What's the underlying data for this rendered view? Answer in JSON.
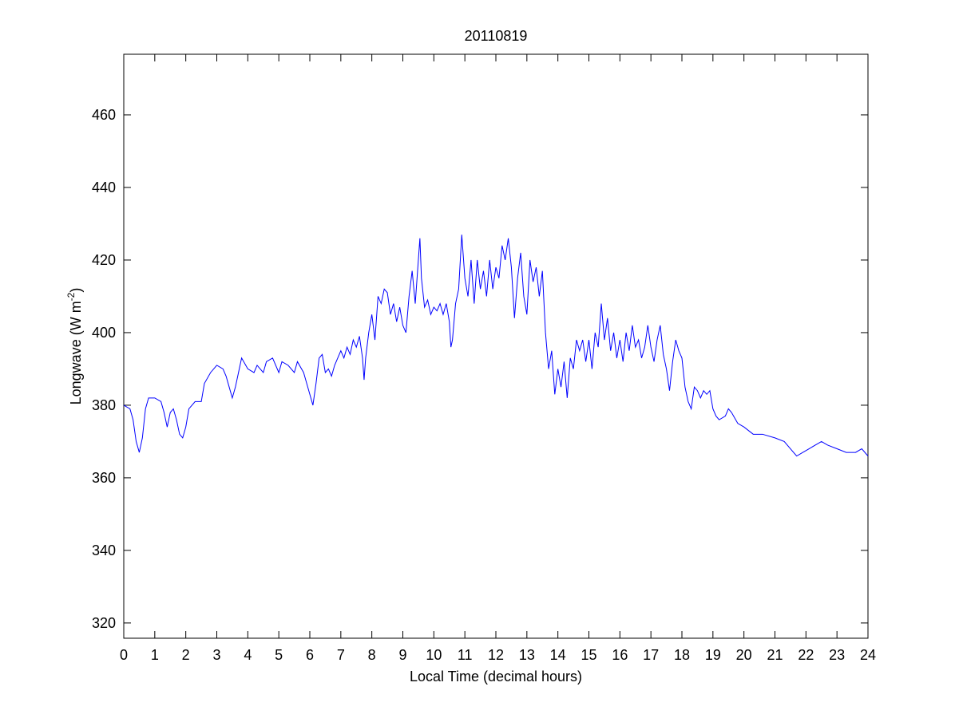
{
  "chart_data": {
    "type": "line",
    "title": "20110819",
    "x_label": "Local Time (decimal hours)",
    "y_label": {
      "text": "Longwave (W m",
      "superscript": "-2",
      "suffix": ")"
    },
    "color": "#0000ff",
    "x": [
      0,
      0.2,
      0.3,
      0.4,
      0.5,
      0.6,
      0.7,
      0.8,
      1.0,
      1.2,
      1.3,
      1.4,
      1.5,
      1.6,
      1.7,
      1.8,
      1.9,
      2.0,
      2.1,
      2.3,
      2.5,
      2.6,
      2.8,
      3.0,
      3.2,
      3.3,
      3.4,
      3.5,
      3.6,
      3.7,
      3.8,
      4.0,
      4.2,
      4.3,
      4.5,
      4.6,
      4.8,
      5.0,
      5.1,
      5.3,
      5.5,
      5.6,
      5.8,
      5.9,
      6.0,
      6.1,
      6.2,
      6.3,
      6.4,
      6.5,
      6.6,
      6.7,
      6.8,
      6.9,
      7.0,
      7.1,
      7.2,
      7.3,
      7.4,
      7.5,
      7.6,
      7.7,
      7.75,
      7.8,
      7.9,
      8.0,
      8.1,
      8.2,
      8.3,
      8.4,
      8.5,
      8.6,
      8.7,
      8.8,
      8.9,
      9.0,
      9.1,
      9.2,
      9.3,
      9.4,
      9.5,
      9.55,
      9.6,
      9.7,
      9.8,
      9.9,
      10.0,
      10.1,
      10.2,
      10.3,
      10.4,
      10.5,
      10.55,
      10.6,
      10.7,
      10.8,
      10.9,
      11.0,
      11.1,
      11.2,
      11.3,
      11.4,
      11.5,
      11.6,
      11.7,
      11.8,
      11.9,
      12.0,
      12.1,
      12.2,
      12.3,
      12.4,
      12.5,
      12.6,
      12.7,
      12.8,
      12.9,
      13.0,
      13.1,
      13.2,
      13.3,
      13.4,
      13.5,
      13.6,
      13.7,
      13.8,
      13.9,
      14.0,
      14.1,
      14.2,
      14.3,
      14.4,
      14.5,
      14.6,
      14.7,
      14.8,
      14.9,
      15.0,
      15.1,
      15.2,
      15.3,
      15.4,
      15.5,
      15.6,
      15.7,
      15.8,
      15.9,
      16.0,
      16.1,
      16.2,
      16.3,
      16.4,
      16.5,
      16.6,
      16.7,
      16.8,
      16.9,
      17.0,
      17.1,
      17.2,
      17.3,
      17.4,
      17.5,
      17.6,
      17.7,
      17.8,
      17.9,
      18.0,
      18.1,
      18.2,
      18.3,
      18.4,
      18.5,
      18.6,
      18.7,
      18.8,
      18.9,
      19.0,
      19.1,
      19.2,
      19.4,
      19.5,
      19.6,
      19.8,
      20.0,
      20.3,
      20.6,
      21.0,
      21.3,
      21.5,
      21.7,
      21.9,
      22.1,
      22.3,
      22.5,
      22.7,
      23.0,
      23.3,
      23.6,
      23.8,
      24.0
    ],
    "values": [
      380,
      379,
      376,
      370,
      367,
      371,
      379,
      382,
      382,
      381,
      378,
      374,
      378,
      379,
      376,
      372,
      371,
      374,
      379,
      381,
      381,
      386,
      389,
      391,
      390,
      388,
      385,
      382,
      385,
      389,
      393,
      390,
      389,
      391,
      389,
      392,
      393,
      389,
      392,
      391,
      389,
      392,
      389,
      386,
      383,
      380,
      386,
      393,
      394,
      389,
      390,
      388,
      391,
      393,
      395,
      393,
      396,
      394,
      398,
      396,
      399,
      393,
      387,
      393,
      400,
      405,
      398,
      410,
      408,
      412,
      411,
      405,
      408,
      403,
      407,
      402,
      400,
      410,
      417,
      408,
      420,
      426,
      415,
      407,
      409,
      405,
      407,
      406,
      408,
      405,
      408,
      403,
      396,
      398,
      408,
      412,
      427,
      415,
      410,
      420,
      408,
      420,
      412,
      417,
      410,
      420,
      412,
      418,
      415,
      424,
      420,
      426,
      418,
      404,
      415,
      422,
      410,
      405,
      420,
      414,
      418,
      410,
      417,
      400,
      390,
      395,
      383,
      390,
      385,
      392,
      382,
      393,
      390,
      398,
      395,
      398,
      392,
      398,
      390,
      400,
      396,
      408,
      398,
      404,
      395,
      400,
      393,
      398,
      392,
      400,
      395,
      402,
      396,
      398,
      393,
      396,
      402,
      396,
      392,
      398,
      402,
      394,
      390,
      384,
      392,
      398,
      395,
      393,
      385,
      381,
      379,
      385,
      384,
      382,
      384,
      383,
      384,
      379,
      377,
      376,
      377,
      379,
      378,
      375,
      374,
      372,
      372,
      371,
      370,
      368,
      366,
      367,
      368,
      369,
      370,
      369,
      368,
      367,
      367,
      368,
      366
    ],
    "xlim": [
      0,
      24
    ],
    "xticks": [
      0,
      1,
      2,
      3,
      4,
      5,
      6,
      7,
      8,
      9,
      10,
      11,
      12,
      13,
      14,
      15,
      16,
      17,
      18,
      19,
      20,
      21,
      22,
      23,
      24
    ],
    "ylim": [
      315.8,
      476.7
    ],
    "yticks": [
      320,
      340,
      360,
      380,
      400,
      420,
      440,
      460
    ]
  }
}
